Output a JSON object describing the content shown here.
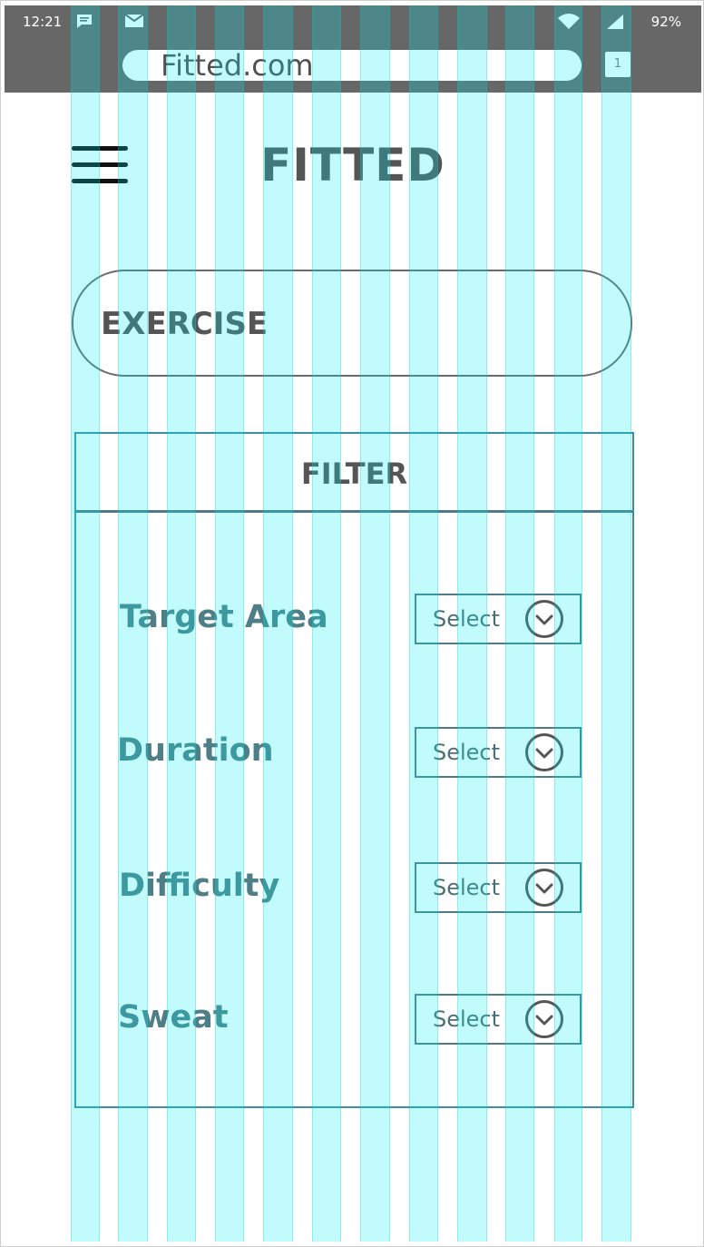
{
  "status_bar": {
    "time": "12:21",
    "battery": "92%",
    "icons": [
      "chat-icon",
      "mail-icon",
      "wifi-icon",
      "signal-icon"
    ]
  },
  "browser": {
    "url": "Fitted.com",
    "tab_count": "1"
  },
  "header": {
    "title": "FITTED",
    "menu_icon": "hamburger-icon"
  },
  "exercise": {
    "label": "EXERCISE"
  },
  "filter": {
    "title": "FILTER",
    "rows": [
      {
        "label": "Target Area",
        "select": "Select"
      },
      {
        "label": "Duration",
        "select": "Select"
      },
      {
        "label": "Difficulty",
        "select": "Select"
      },
      {
        "label": "Sweat",
        "select": "Select"
      }
    ]
  },
  "colors": {
    "status_bar": "#676767",
    "grid_overlay": "#00f0f0",
    "panel_border": "#3c8ea8",
    "label_text": "#4f7f86"
  }
}
